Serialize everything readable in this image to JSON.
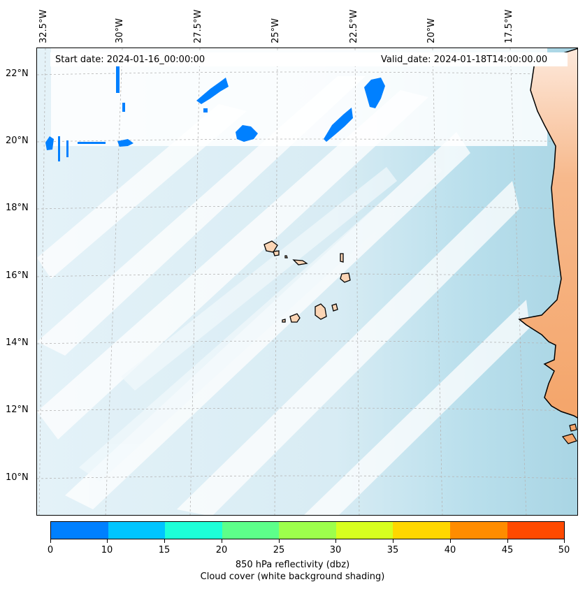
{
  "map": {
    "start_date": "Start date: 2024-01-16_00:00:00",
    "valid_date": "Valid_date: 2024-01-18T14:00:00.00",
    "lon_labels": [
      "32.5°W",
      "30°W",
      "27.5°W",
      "25°W",
      "22.5°W",
      "20°W",
      "17.5°W"
    ],
    "lat_labels": [
      "22°N",
      "20°N",
      "18°N",
      "16°N",
      "14°N",
      "12°N",
      "10°N"
    ],
    "colors": {
      "ocean_cloud": "#a9d5e4",
      "land": "#f4a56a",
      "reflectivity_low": "#0080ff",
      "coastline": "#000000"
    }
  },
  "colorbar": {
    "label": "850 hPa reflectivity (dbz)",
    "sublabel": "Cloud cover (white background shading)",
    "ticks": [
      "0",
      "10",
      "15",
      "20",
      "25",
      "30",
      "35",
      "40",
      "45",
      "50"
    ],
    "colors": [
      "#0080ff",
      "#00c5ff",
      "#1dffd8",
      "#5dff8a",
      "#9dff4c",
      "#d7ff1f",
      "#ffd700",
      "#ff8c00",
      "#ff4a00"
    ]
  }
}
